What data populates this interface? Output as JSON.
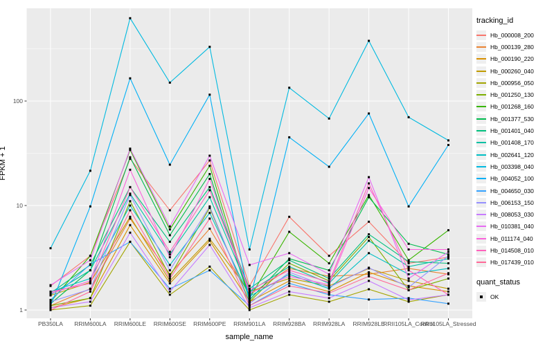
{
  "figure": {
    "background": "#FFFFFF",
    "panel_background": "#EBEBEB",
    "gridline_color": "#FFFFFF",
    "tick_color": "#333333",
    "tick_text_color": "#4D4D4D",
    "point_color": "#000000"
  },
  "axes": {
    "x_title": "sample_name",
    "y_title": "FPKM + 1",
    "y_ticks": [
      {
        "label": "1",
        "value": 1
      },
      {
        "label": "10",
        "value": 10
      },
      {
        "label": "100",
        "value": 100
      }
    ],
    "y_minor": [
      3.162,
      31.62,
      316.23
    ]
  },
  "legend": {
    "tracking_title": "tracking_id",
    "quant_title": "quant_status",
    "quant_items": [
      {
        "label": "OK"
      }
    ]
  },
  "chart_data": {
    "type": "line",
    "title": "",
    "xlabel": "sample_name",
    "ylabel": "FPKM + 1",
    "y_scale": "log10",
    "ylim": [
      1,
      770
    ],
    "grid": true,
    "legend_position": "right",
    "point_shape": "black-square",
    "categories": [
      "PB350LA",
      "RRIM600LA",
      "RRIM600LE",
      "RRIM600SE",
      "RRIM600PE",
      "RRIM901LA",
      "RRIM928BA",
      "RRIM928LA",
      "RRIM928LE",
      "RRII105LA_Control",
      "RRII105LA_Stressed"
    ],
    "series": [
      {
        "name": "Hb_000008_200",
        "color": "#F8766D",
        "values": [
          1.7,
          3.3,
          28,
          9.0,
          27,
          1.7,
          7.8,
          3.3,
          7.0,
          2.8,
          3.2
        ]
      },
      {
        "name": "Hb_000139_280",
        "color": "#EA8331",
        "values": [
          1.1,
          1.6,
          7.5,
          2.2,
          6.0,
          1.4,
          2.5,
          2.1,
          2.2,
          2.5,
          2.2
        ]
      },
      {
        "name": "Hb_000190_220",
        "color": "#D89000",
        "values": [
          1.05,
          1.3,
          6.5,
          1.8,
          4.6,
          1.2,
          1.9,
          1.5,
          2.3,
          1.7,
          1.5
        ]
      },
      {
        "name": "Hb_000260_040",
        "color": "#C09B00",
        "values": [
          1.38,
          1.84,
          7.8,
          1.9,
          4.8,
          1.5,
          2.0,
          1.7,
          2.5,
          1.9,
          1.6
        ]
      },
      {
        "name": "Hb_000956_050",
        "color": "#A3A500",
        "values": [
          1.0,
          1.1,
          4.5,
          1.4,
          2.6,
          1.0,
          1.4,
          1.2,
          1.58,
          1.2,
          1.4
        ]
      },
      {
        "name": "Hb_001250_130",
        "color": "#7CAE00",
        "values": [
          1.1,
          1.3,
          11,
          2.1,
          9.5,
          1.2,
          2.8,
          1.9,
          5.0,
          1.55,
          2.0
        ]
      },
      {
        "name": "Hb_001268_160",
        "color": "#39B600",
        "values": [
          1.2,
          3.3,
          34,
          5.9,
          24,
          1.3,
          5.6,
          2.8,
          12.6,
          3.0,
          5.8
        ]
      },
      {
        "name": "Hb_001377_530",
        "color": "#00BB4E",
        "values": [
          1.15,
          2.4,
          29,
          5.2,
          20,
          1.25,
          3.1,
          2.4,
          12.0,
          4.3,
          3.4
        ]
      },
      {
        "name": "Hb_001401_040",
        "color": "#00BF7D",
        "values": [
          1.45,
          2.7,
          15,
          4.5,
          15,
          1.6,
          3.0,
          2.0,
          5.3,
          2.9,
          2.8
        ]
      },
      {
        "name": "Hb_001408_170",
        "color": "#00C1A3",
        "values": [
          1.4,
          2.4,
          13,
          3.4,
          12,
          1.5,
          2.6,
          1.8,
          4.6,
          2.6,
          3.1
        ]
      },
      {
        "name": "Hb_002641_120",
        "color": "#00BFC4",
        "values": [
          1.5,
          2.0,
          10,
          2.7,
          8.5,
          1.35,
          2.2,
          1.6,
          3.5,
          2.2,
          2.5
        ]
      },
      {
        "name": "Hb_003398_040",
        "color": "#00BAE0",
        "values": [
          3.9,
          21.5,
          620,
          150,
          330,
          3.8,
          134,
          68,
          377,
          70,
          42
        ]
      },
      {
        "name": "Hb_004052_100",
        "color": "#00B0F6",
        "values": [
          1.1,
          9.8,
          165,
          24.6,
          115,
          1.2,
          45,
          23.5,
          76,
          9.8,
          38
        ]
      },
      {
        "name": "Hb_004650_030",
        "color": "#35A2FF",
        "values": [
          1.25,
          2.74,
          4.5,
          1.6,
          2.4,
          1.1,
          1.8,
          1.4,
          1.26,
          1.3,
          1.15
        ]
      },
      {
        "name": "Hb_006153_150",
        "color": "#9590FF",
        "values": [
          1.2,
          1.58,
          12.6,
          2.4,
          9.8,
          1.15,
          2.3,
          1.65,
          2.54,
          1.65,
          3.3
        ]
      },
      {
        "name": "Hb_008053_030",
        "color": "#C77CFF",
        "values": [
          1.05,
          1.2,
          5.5,
          1.5,
          4.2,
          1.05,
          1.5,
          1.3,
          1.9,
          1.25,
          1.4
        ]
      },
      {
        "name": "Hb_010381_040",
        "color": "#E76BF3",
        "values": [
          1.73,
          3.0,
          35,
          6.3,
          30,
          2.7,
          3.5,
          2.2,
          18.7,
          2.0,
          3.6
        ]
      },
      {
        "name": "Hb_011174_040",
        "color": "#FA62DB",
        "values": [
          1.44,
          1.9,
          22,
          3.2,
          18,
          1.45,
          2.1,
          1.75,
          14.7,
          3.8,
          3.8
        ]
      },
      {
        "name": "Hb_014508_010",
        "color": "#FF62BC",
        "values": [
          1.49,
          1.8,
          15,
          3.6,
          14,
          1.55,
          2.4,
          1.85,
          16.3,
          2.4,
          1.4
        ]
      },
      {
        "name": "Hb_017439_010",
        "color": "#FF6A98",
        "values": [
          1.0,
          1.5,
          9.0,
          2.0,
          7.5,
          1.1,
          1.7,
          1.45,
          2.1,
          1.55,
          2.25
        ]
      }
    ]
  }
}
